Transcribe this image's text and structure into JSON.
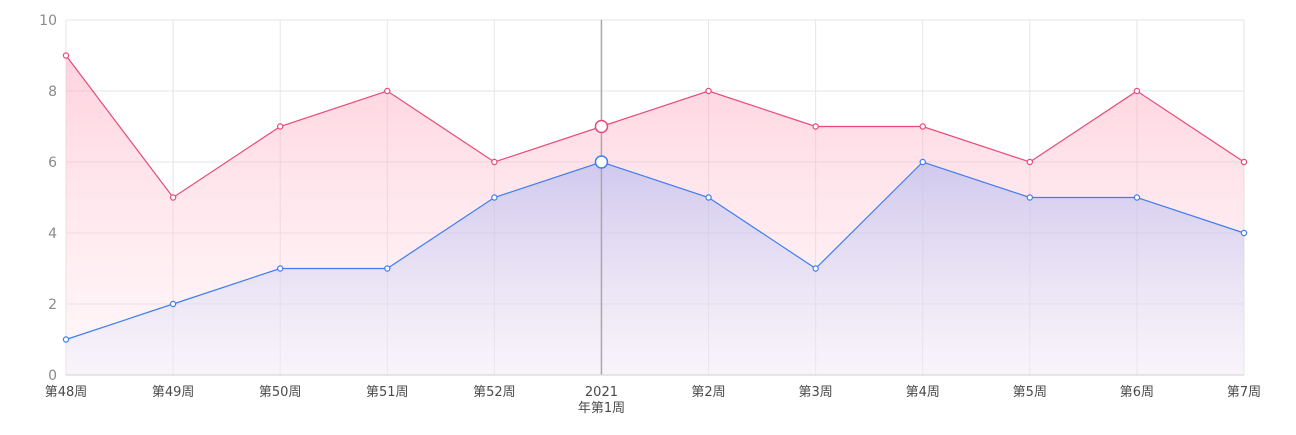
{
  "chart_data": {
    "type": "area",
    "categories": [
      "第48周",
      "第49周",
      "第50周",
      "第51周",
      "第52周",
      "2021\n年第1周",
      "第2周",
      "第3周",
      "第4周",
      "第5周",
      "第6周",
      "第7周"
    ],
    "series": [
      {
        "values": [
          9,
          5,
          7,
          8,
          6,
          7,
          8,
          7,
          7,
          6,
          8,
          6
        ],
        "color": "#e8497a"
      },
      {
        "values": [
          1,
          2,
          3,
          3,
          5,
          6,
          5,
          3,
          6,
          5,
          5,
          4
        ],
        "color": "#3d7ef0"
      }
    ],
    "ylim": [
      0,
      10
    ],
    "yticks": [
      0,
      2,
      4,
      6,
      8,
      10
    ],
    "grid": true,
    "highlight_category": "2021\n年第1周"
  }
}
